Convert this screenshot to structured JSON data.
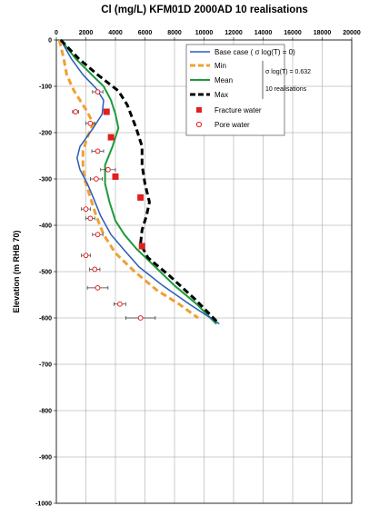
{
  "chart_data": {
    "type": "line",
    "title": "Cl (mg/L) KFM01D  2000AD 10 realisations",
    "xlabel": "",
    "ylabel": "Elevation (m RHB 70)",
    "xlim": [
      0,
      20000
    ],
    "ylim": [
      -1000,
      0
    ],
    "x_ticks": [
      0,
      2000,
      4000,
      6000,
      8000,
      10000,
      12000,
      14000,
      16000,
      18000,
      20000
    ],
    "x_tick_labels": [
      "0",
      "2000",
      "4000",
      "6000",
      "8000",
      "10000",
      "12000",
      "14000",
      "16000",
      "18000",
      "20000"
    ],
    "y_ticks": [
      0,
      -100,
      -200,
      -300,
      -400,
      -500,
      -600,
      -700,
      -800,
      -900,
      -1000
    ],
    "y_tick_labels": [
      "0",
      "-100",
      "-200",
      "-300",
      "-400",
      "-500",
      "-600",
      "-700",
      "-800",
      "-900",
      "-1000"
    ],
    "x_axis_position": "top",
    "grid": true,
    "legend_position": "top-right",
    "legend_note_sigma": "σ log(T) = 0.632",
    "legend_note_realisations": "10 realisations",
    "series": [
      {
        "name": "Base case  ( σ log(T) = 0)",
        "style": "solid",
        "color": "#2a5cb8",
        "points": [
          [
            300,
            0
          ],
          [
            1000,
            -40
          ],
          [
            1800,
            -75
          ],
          [
            2700,
            -105
          ],
          [
            3200,
            -130
          ],
          [
            3100,
            -160
          ],
          [
            2500,
            -190
          ],
          [
            1600,
            -230
          ],
          [
            1400,
            -255
          ],
          [
            1600,
            -280
          ],
          [
            2100,
            -310
          ],
          [
            2500,
            -340
          ],
          [
            3000,
            -380
          ],
          [
            3700,
            -420
          ],
          [
            4500,
            -450
          ],
          [
            5600,
            -490
          ],
          [
            7200,
            -530
          ],
          [
            9000,
            -570
          ],
          [
            11000,
            -612
          ]
        ]
      },
      {
        "name": "Min",
        "style": "dashed",
        "color": "#f0a030",
        "points": [
          [
            200,
            0
          ],
          [
            500,
            -40
          ],
          [
            700,
            -75
          ],
          [
            1200,
            -110
          ],
          [
            2000,
            -150
          ],
          [
            2500,
            -180
          ],
          [
            2100,
            -210
          ],
          [
            1800,
            -240
          ],
          [
            1800,
            -270
          ],
          [
            1900,
            -300
          ],
          [
            2300,
            -340
          ],
          [
            2700,
            -380
          ],
          [
            3200,
            -420
          ],
          [
            4000,
            -460
          ],
          [
            5300,
            -500
          ],
          [
            6800,
            -540
          ],
          [
            8300,
            -570
          ],
          [
            9600,
            -600
          ]
        ]
      },
      {
        "name": "Mean",
        "style": "solid",
        "color": "#1e9a3a",
        "points": [
          [
            300,
            0
          ],
          [
            1300,
            -40
          ],
          [
            2400,
            -75
          ],
          [
            3200,
            -100
          ],
          [
            3700,
            -130
          ],
          [
            4000,
            -160
          ],
          [
            4200,
            -190
          ],
          [
            3800,
            -230
          ],
          [
            3300,
            -270
          ],
          [
            3300,
            -310
          ],
          [
            3600,
            -350
          ],
          [
            4000,
            -390
          ],
          [
            4600,
            -420
          ],
          [
            5400,
            -450
          ],
          [
            6700,
            -490
          ],
          [
            8000,
            -530
          ],
          [
            9500,
            -570
          ],
          [
            10800,
            -612
          ]
        ]
      },
      {
        "name": "Max",
        "style": "dashed",
        "color": "#000000",
        "points": [
          [
            300,
            0
          ],
          [
            1500,
            -40
          ],
          [
            2800,
            -75
          ],
          [
            4200,
            -110
          ],
          [
            4800,
            -140
          ],
          [
            5400,
            -190
          ],
          [
            5800,
            -230
          ],
          [
            5800,
            -270
          ],
          [
            6000,
            -310
          ],
          [
            6300,
            -350
          ],
          [
            6100,
            -380
          ],
          [
            5800,
            -410
          ],
          [
            5700,
            -440
          ],
          [
            6200,
            -470
          ],
          [
            7700,
            -510
          ],
          [
            9400,
            -560
          ],
          [
            11000,
            -612
          ]
        ]
      }
    ],
    "fracture_water": {
      "name": "Fracture water",
      "color": "#e02020",
      "points": [
        [
          3400,
          -155
        ],
        [
          3700,
          -210
        ],
        [
          4000,
          -295
        ],
        [
          5700,
          -340
        ],
        [
          5800,
          -445
        ]
      ]
    },
    "pore_water": {
      "name": "Pore water",
      "color": "#e02020",
      "points": [
        {
          "x": 2800,
          "y": -112,
          "xerr": 350
        },
        {
          "x": 1300,
          "y": -155,
          "xerr": 200
        },
        {
          "x": 2300,
          "y": -180,
          "xerr": 300
        },
        {
          "x": 2800,
          "y": -240,
          "xerr": 400
        },
        {
          "x": 3500,
          "y": -280,
          "xerr": 500
        },
        {
          "x": 2700,
          "y": -300,
          "xerr": 400
        },
        {
          "x": 2000,
          "y": -365,
          "xerr": 300
        },
        {
          "x": 2300,
          "y": -385,
          "xerr": 300
        },
        {
          "x": 2800,
          "y": -420,
          "xerr": 350
        },
        {
          "x": 2000,
          "y": -465,
          "xerr": 300
        },
        {
          "x": 2600,
          "y": -495,
          "xerr": 350
        },
        {
          "x": 2800,
          "y": -535,
          "xerr": 700
        },
        {
          "x": 4300,
          "y": -570,
          "xerr": 400
        },
        {
          "x": 5700,
          "y": -600,
          "xerr": 1000
        }
      ]
    }
  }
}
